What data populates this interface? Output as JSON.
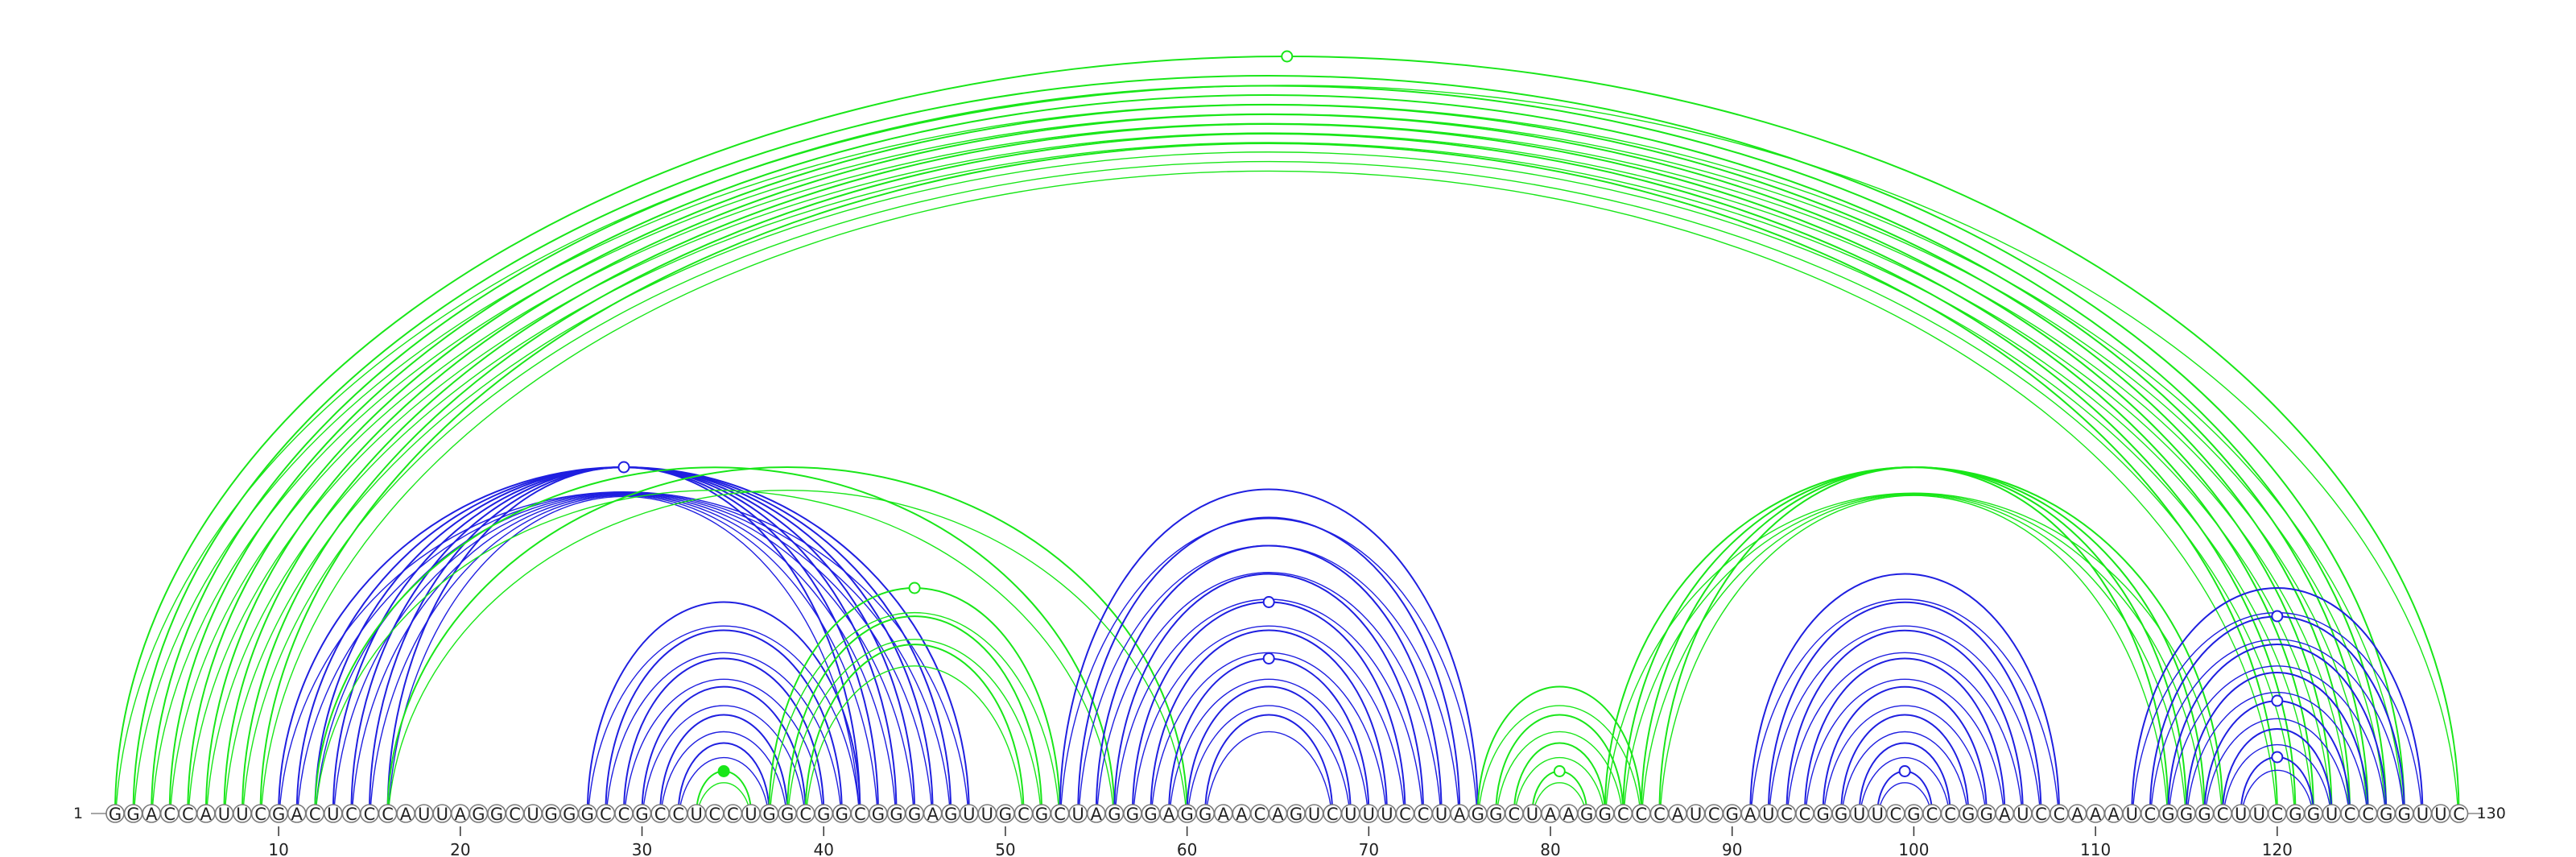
{
  "sequence": "GGACCAUUCGACUCCCAUUAGGCUGGGCCGCCUCCUGGCGGCGGGAGUUGCGCUAGGGAGGAACAGUCUUUCCUAGGCUAAGGCCCAUCGAUCCGGUUCGCCGGAUCCAAAUCGGGCUUCGGUCCGGUUC",
  "start_label": "1",
  "end_label": "130",
  "ticks": [
    {
      "pos": 10,
      "label": "10"
    },
    {
      "pos": 20,
      "label": "20"
    },
    {
      "pos": 30,
      "label": "30"
    },
    {
      "pos": 40,
      "label": "40"
    },
    {
      "pos": 50,
      "label": "50"
    },
    {
      "pos": 60,
      "label": "60"
    },
    {
      "pos": 70,
      "label": "70"
    },
    {
      "pos": 80,
      "label": "80"
    },
    {
      "pos": 90,
      "label": "90"
    },
    {
      "pos": 100,
      "label": "100"
    },
    {
      "pos": 110,
      "label": "110"
    },
    {
      "pos": 120,
      "label": "120"
    }
  ],
  "colors": {
    "blue": "#1f1fe0",
    "green": "#19e619"
  },
  "arcs": [
    {
      "i": 1,
      "j": 130,
      "color": "green"
    },
    {
      "i": 2,
      "j": 127,
      "color": "green"
    },
    {
      "i": 3,
      "j": 126,
      "color": "green"
    },
    {
      "i": 4,
      "j": 125,
      "color": "green"
    },
    {
      "i": 5,
      "j": 124,
      "color": "green"
    },
    {
      "i": 6,
      "j": 123,
      "color": "green"
    },
    {
      "i": 7,
      "j": 122,
      "color": "green"
    },
    {
      "i": 8,
      "j": 121,
      "color": "green"
    },
    {
      "i": 9,
      "j": 120,
      "color": "green"
    },
    {
      "i": 10,
      "j": 48,
      "color": "blue"
    },
    {
      "i": 11,
      "j": 47,
      "color": "blue"
    },
    {
      "i": 12,
      "j": 46,
      "color": "blue"
    },
    {
      "i": 13,
      "j": 45,
      "color": "blue"
    },
    {
      "i": 14,
      "j": 44,
      "color": "blue"
    },
    {
      "i": 15,
      "j": 43,
      "color": "blue"
    },
    {
      "i": 16,
      "j": 42,
      "color": "blue"
    },
    {
      "i": 12,
      "j": 56,
      "color": "green"
    },
    {
      "i": 16,
      "j": 60,
      "color": "green"
    },
    {
      "i": 27,
      "j": 42,
      "color": "blue"
    },
    {
      "i": 28,
      "j": 41,
      "color": "blue"
    },
    {
      "i": 29,
      "j": 40,
      "color": "blue"
    },
    {
      "i": 30,
      "j": 39,
      "color": "blue"
    },
    {
      "i": 31,
      "j": 38,
      "color": "blue"
    },
    {
      "i": 32,
      "j": 37,
      "color": "blue"
    },
    {
      "i": 33,
      "j": 36,
      "color": "green"
    },
    {
      "i": 37,
      "j": 53,
      "color": "green"
    },
    {
      "i": 38,
      "j": 52,
      "color": "green"
    },
    {
      "i": 39,
      "j": 51,
      "color": "green"
    },
    {
      "i": 53,
      "j": 76,
      "color": "blue"
    },
    {
      "i": 54,
      "j": 75,
      "color": "blue"
    },
    {
      "i": 55,
      "j": 74,
      "color": "blue"
    },
    {
      "i": 56,
      "j": 73,
      "color": "blue"
    },
    {
      "i": 57,
      "j": 72,
      "color": "blue"
    },
    {
      "i": 58,
      "j": 71,
      "color": "blue"
    },
    {
      "i": 59,
      "j": 70,
      "color": "blue"
    },
    {
      "i": 60,
      "j": 69,
      "color": "blue"
    },
    {
      "i": 61,
      "j": 68,
      "color": "blue"
    },
    {
      "i": 76,
      "j": 85,
      "color": "green"
    },
    {
      "i": 77,
      "j": 84,
      "color": "green"
    },
    {
      "i": 78,
      "j": 83,
      "color": "green"
    },
    {
      "i": 79,
      "j": 82,
      "color": "green"
    },
    {
      "i": 83,
      "j": 117,
      "color": "green"
    },
    {
      "i": 84,
      "j": 116,
      "color": "green"
    },
    {
      "i": 85,
      "j": 115,
      "color": "green"
    },
    {
      "i": 86,
      "j": 114,
      "color": "green"
    },
    {
      "i": 91,
      "j": 108,
      "color": "blue"
    },
    {
      "i": 92,
      "j": 107,
      "color": "blue"
    },
    {
      "i": 93,
      "j": 106,
      "color": "blue"
    },
    {
      "i": 94,
      "j": 105,
      "color": "blue"
    },
    {
      "i": 95,
      "j": 104,
      "color": "blue"
    },
    {
      "i": 96,
      "j": 103,
      "color": "blue"
    },
    {
      "i": 97,
      "j": 102,
      "color": "blue"
    },
    {
      "i": 98,
      "j": 101,
      "color": "blue"
    },
    {
      "i": 112,
      "j": 128,
      "color": "blue"
    },
    {
      "i": 113,
      "j": 127,
      "color": "blue"
    },
    {
      "i": 114,
      "j": 126,
      "color": "blue"
    },
    {
      "i": 115,
      "j": 125,
      "color": "blue"
    },
    {
      "i": 116,
      "j": 124,
      "color": "blue"
    },
    {
      "i": 117,
      "j": 123,
      "color": "blue"
    },
    {
      "i": 118,
      "j": 122,
      "color": "blue"
    }
  ],
  "apex_markers": [
    {
      "i": 1,
      "j": 130,
      "color": "green",
      "filled": false
    },
    {
      "i": 10,
      "j": 48,
      "color": "blue",
      "filled": false
    },
    {
      "i": 33,
      "j": 36,
      "color": "green",
      "filled": true
    },
    {
      "i": 37,
      "j": 53,
      "color": "green",
      "filled": false
    },
    {
      "i": 57,
      "j": 72,
      "color": "blue",
      "filled": false
    },
    {
      "i": 59,
      "j": 70,
      "color": "blue",
      "filled": false
    },
    {
      "i": 79,
      "j": 82,
      "color": "green",
      "filled": false
    },
    {
      "i": 98,
      "j": 101,
      "color": "blue",
      "filled": false
    },
    {
      "i": 113,
      "j": 127,
      "color": "blue",
      "filled": false
    },
    {
      "i": 116,
      "j": 124,
      "color": "blue",
      "filled": false
    },
    {
      "i": 118,
      "j": 122,
      "color": "blue",
      "filled": false
    }
  ]
}
